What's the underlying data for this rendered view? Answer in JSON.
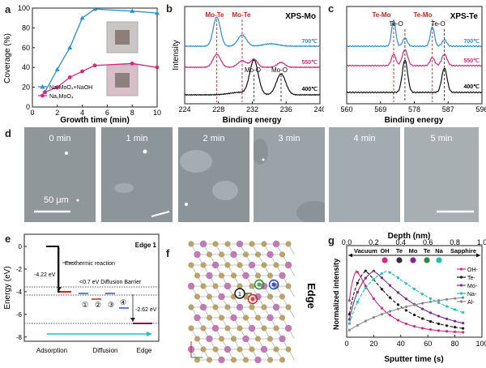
{
  "panel_a": {
    "label": "a",
    "ylabel": "Coverage (%)",
    "xlabel": "Growth time (min)",
    "yticks": [
      "0",
      "20",
      "40",
      "60",
      "80",
      "100"
    ],
    "xticks": [
      "0",
      "2",
      "4",
      "6",
      "8",
      "10"
    ],
    "legend": [
      "Na₂MoO₄+NaOH",
      "Na₂MoO₄"
    ],
    "colors": [
      "#2a8fd6",
      "#d6297e"
    ]
  },
  "panel_b": {
    "label": "b",
    "title": "XPS-Mo",
    "ylabel": "Intensity",
    "xlabel": "Binding energy",
    "xticks": [
      "224",
      "228",
      "232",
      "236",
      "240"
    ],
    "peak_labels": [
      "Mo-Te",
      "Mo-Te",
      "Mo-O",
      "Mo-O"
    ],
    "temps": [
      "700℃",
      "550℃",
      "400℃"
    ]
  },
  "panel_c": {
    "label": "c",
    "title": "XPS-Te",
    "xlabel": "Binding energy",
    "xticks": [
      "560",
      "569",
      "578",
      "587",
      "596"
    ],
    "peak_labels": [
      "Te-Mo",
      "Te-O",
      "Te-Mo",
      "Te-O"
    ],
    "temps": [
      "700℃",
      "550℃",
      "400℃"
    ]
  },
  "panel_d": {
    "label": "d",
    "frames": [
      "0 min",
      "1 min",
      "2 min",
      "3 min",
      "4 min",
      "5 min"
    ],
    "scale": "50 μm"
  },
  "panel_e": {
    "label": "e",
    "title": "Edge 1",
    "ylabel": "Energy (eV)",
    "yticks": [
      "0",
      "-2",
      "-4",
      "-6",
      "-8"
    ],
    "ann_reaction": "Exothermic reaction",
    "ann_barrier": "<0.7 eV Diffusion Barrier",
    "ann_e1": "-4.22 eV",
    "ann_e2": "-2.62 eV",
    "sites": [
      "①",
      "②",
      "③",
      "④"
    ],
    "xcats": [
      "Adsorption",
      "Diffusion",
      "Edge"
    ]
  },
  "panel_f": {
    "label": "f",
    "edge": "Edge"
  },
  "panel_g": {
    "label": "g",
    "top_title": "Depth (nm)",
    "top_ticks": [
      "0.0",
      "0.2",
      "0.4",
      "0.6",
      "0.8",
      "1.0"
    ],
    "ylabel": "Normalized intensity",
    "xlabel": "Sputter time (s)",
    "xticks": [
      "0",
      "20",
      "40",
      "60",
      "80",
      "100"
    ],
    "layers": [
      "Vacuum",
      "OH",
      "Te",
      "Mo",
      "Te",
      "Na",
      "Sapphire"
    ],
    "layer_colors": [
      "#d6297e",
      "#333333",
      "#7b2a8f",
      "#2a8a3a",
      "#19c3c3"
    ],
    "legend": [
      "OH-",
      "Te-",
      "Mo-",
      "Na-",
      "Al-"
    ],
    "series_colors": [
      "#d6297e",
      "#1a1a1a",
      "#7b2a8f",
      "#19c3c3",
      "#888888"
    ]
  },
  "chart_data": [
    {
      "type": "line",
      "x": [
        1,
        2,
        3,
        4,
        5,
        8,
        10
      ],
      "series": [
        {
          "name": "Na₂MoO₄+NaOH",
          "values": [
            15,
            38,
            60,
            90,
            99,
            97,
            95
          ]
        },
        {
          "name": "Na₂MoO₄",
          "values": [
            15,
            20,
            30,
            36,
            42,
            44,
            40
          ]
        }
      ],
      "xlabel": "Growth time (min)",
      "ylabel": "Coverage (%)",
      "xlim": [
        0,
        10
      ],
      "ylim": [
        0,
        100
      ]
    },
    {
      "type": "line",
      "title": "XPS-Mo",
      "xlabel": "Binding energy",
      "ylabel": "Intensity",
      "xlim": [
        224,
        240
      ],
      "peaks": [
        227.8,
        230.8,
        232.2,
        235.4
      ],
      "series": [
        {
          "name": "700℃"
        },
        {
          "name": "550℃"
        },
        {
          "name": "400℃"
        }
      ]
    },
    {
      "type": "line",
      "title": "XPS-Te",
      "xlabel": "Binding energy",
      "xlim": [
        560,
        596
      ],
      "peaks": [
        572.5,
        575.5,
        582.8,
        586
      ]
    },
    {
      "type": "line",
      "xlabel": "Sputter time (s)",
      "ylabel": "Normalized intensity",
      "xlim": [
        0,
        100
      ],
      "series": [
        {
          "name": "OH-",
          "peak": 7
        },
        {
          "name": "Te-",
          "peak": 14
        },
        {
          "name": "Mo-",
          "peak": 20
        },
        {
          "name": "Na-",
          "peak": 30
        },
        {
          "name": "Al-",
          "peak": 100
        }
      ]
    }
  ]
}
